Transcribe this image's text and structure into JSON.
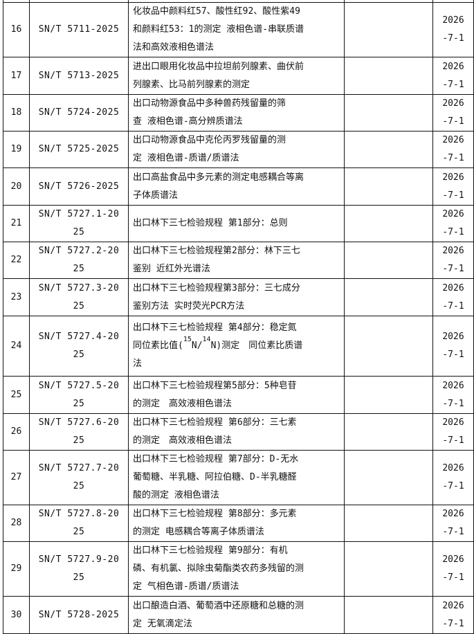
{
  "rows": [
    {
      "no": "16",
      "code": [
        "SN/T 5711-2025"
      ],
      "name": [
        "化妆品中颜料红57、酸性红92、酸性紫49",
        "和颜料红53：1的测定 液相色谱-串联质谱",
        "法和高效液相色谱法"
      ],
      "remark": "",
      "date": [
        "2026",
        "-7-1"
      ]
    },
    {
      "no": "17",
      "code": [
        "SN/T 5713-2025"
      ],
      "name": [
        "进出口眼用化妆品中拉坦前列腺素、曲伏前",
        "列腺素、比马前列腺素的测定"
      ],
      "remark": "",
      "date": [
        "2026",
        "-7-1"
      ]
    },
    {
      "no": "18",
      "code": [
        "SN/T 5724-2025"
      ],
      "name": [
        "出口动物源食品中多种兽药残留量的筛",
        "查 液相色谱-高分辨质谱法"
      ],
      "remark": "",
      "date": [
        "2026",
        "-7-1"
      ]
    },
    {
      "no": "19",
      "code": [
        "SN/T 5725-2025"
      ],
      "name": [
        "出口动物源食品中克伦丙罗残留量的测",
        "定 液相色谱-质谱/质谱法"
      ],
      "remark": "",
      "date": [
        "2026",
        "-7-1"
      ]
    },
    {
      "no": "20",
      "code": [
        "SN/T 5726-2025"
      ],
      "name": [
        "出口高盐食品中多元素的测定电感耦合等离",
        "子体质谱法"
      ],
      "remark": "",
      "date": [
        "2026",
        "-7-1"
      ]
    },
    {
      "no": "21",
      "code": [
        "SN/T 5727.1-20",
        "25"
      ],
      "name": [
        "出口林下三七检验规程 第1部分：总则"
      ],
      "remark": "",
      "date": [
        "2026",
        "-7-1"
      ]
    },
    {
      "no": "22",
      "code": [
        "SN/T 5727.2-20",
        "25"
      ],
      "name": [
        "出口林下三七检验规程第2部分：林下三七",
        "鉴别 近红外光谱法"
      ],
      "remark": "",
      "date": [
        "2026",
        "-7-1"
      ]
    },
    {
      "no": "23",
      "code": [
        "SN/T 5727.3-20",
        "25"
      ],
      "name": [
        "出口林下三七检验规程第3部分：三七成分",
        "鉴别方法 实时荧光PCR方法"
      ],
      "remark": "",
      "date": [
        "2026",
        "-7-1"
      ]
    },
    {
      "no": "24",
      "code": [
        "SN/T 5727.4-20",
        "25"
      ],
      "name": [
        "出口林下三七检验规程 第4部分：稳定氮",
        {
          "pre": "同位素比值(",
          "sup1": "15",
          "mid": "N/",
          "sup2": "14",
          "post": "N)测定　同位素比质谱"
        },
        "法"
      ],
      "remark": "",
      "date": [
        "2026",
        "-7-1"
      ]
    },
    {
      "no": "25",
      "code": [
        "SN/T 5727.5-20",
        "25"
      ],
      "name": [
        "出口林下三七检验规程第5部分：5种皂苷",
        "的测定　高效液相色谱法"
      ],
      "remark": "",
      "date": [
        "2026",
        "-7-1"
      ]
    },
    {
      "no": "26",
      "code": [
        "SN/T 5727.6-20",
        "25"
      ],
      "name": [
        "出口林下三七检验规程 第6部分：三七素",
        "的测定　高效液相色谱法"
      ],
      "remark": "",
      "date": [
        "2026",
        "-7-1"
      ]
    },
    {
      "no": "27",
      "code": [
        "SN/T 5727.7-20",
        "25"
      ],
      "name": [
        "出口林下三七检验规程 第7部分：D-无水",
        "葡萄糖、半乳糖、阿拉伯糖、D-半乳糖醛",
        "酸的测定 液相色谱法"
      ],
      "remark": "",
      "date": [
        "2026",
        "-7-1"
      ]
    },
    {
      "no": "28",
      "code": [
        "SN/T 5727.8-20",
        "25"
      ],
      "name": [
        "出口林下三七检验规程 第8部分：多元素",
        "的测定 电感耦合等离子体质谱法"
      ],
      "remark": "",
      "date": [
        "2026",
        "-7-1"
      ]
    },
    {
      "no": "29",
      "code": [
        "SN/T 5727.9-20",
        "25"
      ],
      "name": [
        "出口林下三七检验规程 第9部分：有机",
        "磷、有机氯、拟除虫菊酯类农药多残留的测",
        "定 气相色谱-质谱/质谱法"
      ],
      "remark": "",
      "date": [
        "2026",
        "-7-1"
      ]
    },
    {
      "no": "30",
      "code": [
        "SN/T 5728-2025"
      ],
      "name": [
        "出口酿造白酒、葡萄酒中还原糖和总糖的测",
        "定 无氧滴定法"
      ],
      "remark": "",
      "date": [
        "2026",
        "-7-1"
      ]
    }
  ]
}
